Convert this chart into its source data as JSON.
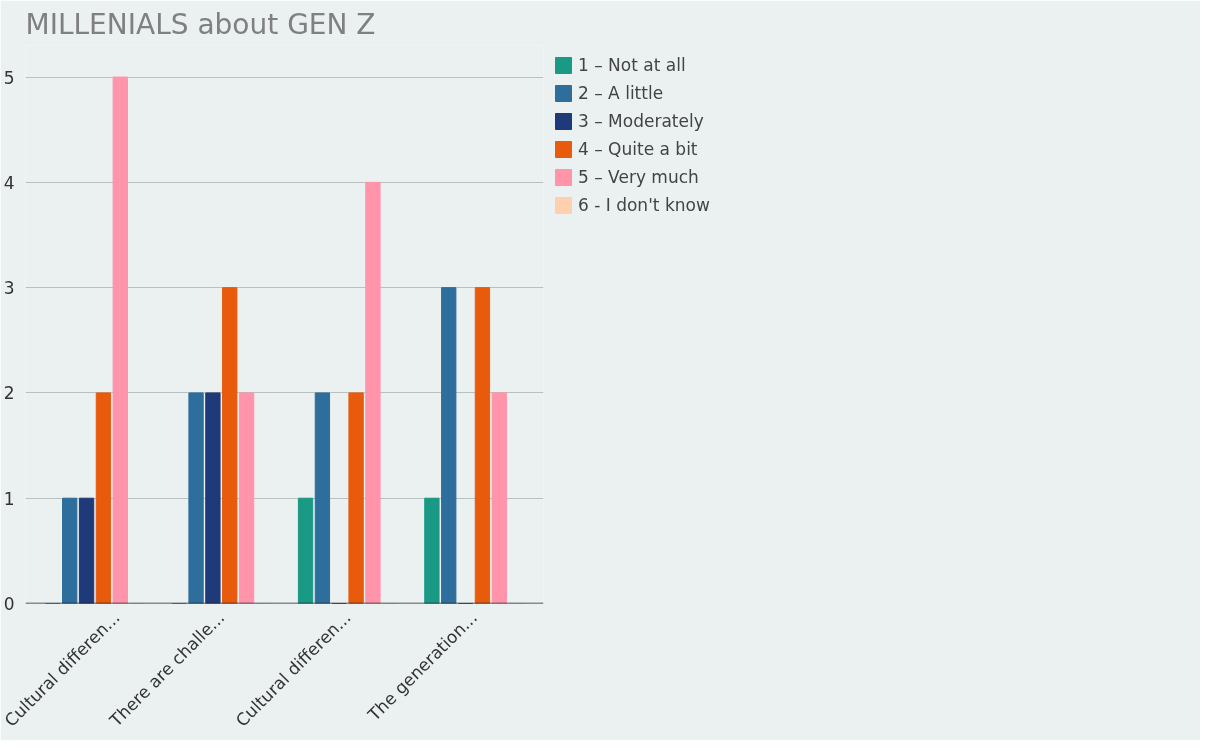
{
  "chart_data": {
    "type": "bar",
    "title": "MILLENIALS about GEN Z",
    "categories": [
      "Cultural differen...",
      "There are challe...",
      "Cultural differen...",
      "The generation..."
    ],
    "series": [
      {
        "name": "1 – Not at all",
        "color": "#1a9985",
        "values": [
          0,
          0,
          1,
          1
        ]
      },
      {
        "name": "2 – A little",
        "color": "#2e6e9c",
        "values": [
          1,
          2,
          2,
          3
        ]
      },
      {
        "name": "3 – Moderately",
        "color": "#1f3a78",
        "values": [
          1,
          2,
          0,
          0
        ]
      },
      {
        "name": "4 – Quite a bit",
        "color": "#e85a0c",
        "values": [
          2,
          3,
          2,
          3
        ]
      },
      {
        "name": "5 – Very much",
        "color": "#ff94ab",
        "values": [
          5,
          2,
          4,
          2
        ]
      },
      {
        "name": "6 - I don't know",
        "color": "#ffcfb0",
        "values": [
          0,
          0,
          0,
          0
        ]
      }
    ],
    "ylim": [
      0,
      5.3
    ],
    "yticks": [
      0,
      1,
      2,
      3,
      4,
      5
    ],
    "grid": "y",
    "legend": "right"
  }
}
